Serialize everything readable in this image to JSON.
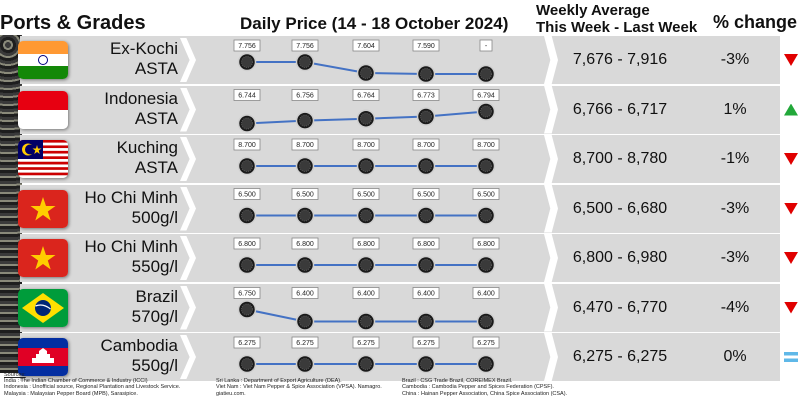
{
  "headers": {
    "ports": "Ports & Grades",
    "daily": "Daily Price (14 - 18 October 2024)",
    "weekly_line1": "Weekly Average",
    "weekly_line2": "This Week - Last Week",
    "pct": "% change"
  },
  "rows": [
    {
      "flag": "india",
      "line1": "Ex-Kochi",
      "line2": "ASTA",
      "avg": "7,676 - 7,916",
      "pct": "-3%",
      "trend": "down"
    },
    {
      "flag": "indonesia",
      "line1": "Indonesia",
      "line2": "ASTA",
      "avg": "6,766 - 6,717",
      "pct": "1%",
      "trend": "up"
    },
    {
      "flag": "malaysia",
      "line1": "Kuching",
      "line2": "ASTA",
      "avg": "8,700 - 8,780",
      "pct": "-1%",
      "trend": "down"
    },
    {
      "flag": "vietnam",
      "line1": "Ho Chi Minh",
      "line2": "500g/l",
      "avg": "6,500 - 6,680",
      "pct": "-3%",
      "trend": "down"
    },
    {
      "flag": "vietnam",
      "line1": "Ho Chi Minh",
      "line2": "550g/l",
      "avg": "6,800 - 6,980",
      "pct": "-3%",
      "trend": "down"
    },
    {
      "flag": "brazil",
      "line1": "Brazil",
      "line2": "570g/l",
      "avg": "6,470 - 6,770",
      "pct": "-4%",
      "trend": "down"
    },
    {
      "flag": "cambodia",
      "line1": "Cambodia",
      "line2": "550g/l",
      "avg": "6,275 - 6,275",
      "pct": "0%",
      "trend": "flat"
    }
  ],
  "chart_data": {
    "type": "line",
    "title": "Daily Price (14 - 18 October 2024)",
    "series": [
      {
        "name": "Ex-Kochi ASTA",
        "values": [
          7756,
          7756,
          7604,
          7590,
          null
        ],
        "labels": [
          "7.756",
          "7.756",
          "7.604",
          "7.590",
          "-"
        ]
      },
      {
        "name": "Indonesia ASTA",
        "values": [
          6744,
          6756,
          6764,
          6773,
          6794
        ],
        "labels": [
          "6.744",
          "6.756",
          "6.764",
          "6.773",
          "6.794"
        ]
      },
      {
        "name": "Kuching ASTA",
        "values": [
          8700,
          8700,
          8700,
          8700,
          8700
        ],
        "labels": [
          "8.700",
          "8.700",
          "8.700",
          "8.700",
          "8.700"
        ]
      },
      {
        "name": "Ho Chi Minh 500g/l",
        "values": [
          6500,
          6500,
          6500,
          6500,
          6500
        ],
        "labels": [
          "6.500",
          "6.500",
          "6.500",
          "6.500",
          "6.500"
        ]
      },
      {
        "name": "Ho Chi Minh 550g/l",
        "values": [
          6800,
          6800,
          6800,
          6800,
          6800
        ],
        "labels": [
          "6.800",
          "6.800",
          "6.800",
          "6.800",
          "6.800"
        ]
      },
      {
        "name": "Brazil 570g/l",
        "values": [
          6750,
          6400,
          6400,
          6400,
          6400
        ],
        "labels": [
          "6.750",
          "6.400",
          "6.400",
          "6.400",
          "6.400"
        ]
      },
      {
        "name": "Cambodia 550g/l",
        "values": [
          6275,
          6275,
          6275,
          6275,
          6275
        ],
        "labels": [
          "6.275",
          "6.275",
          "6.275",
          "6.275",
          "6.275"
        ]
      }
    ],
    "line_color": "#4472c4"
  },
  "sources": {
    "title": "Sources:",
    "col1": [
      "India : The Indian Chamber of Commerce & Industry (ICCI)",
      "Indonesia : Unofficial source, Regional Plantation and Livestock Service.",
      "Malaysia : Malaysian Pepper Board (MPB), Sarasipice."
    ],
    "col2": [
      "Sri Lanka : Department of Export Agriculture (DEA).",
      "Viet Nam : Viet Nam Pepper & Spice Association (VPSA). Namagro.",
      "giatieu.com."
    ],
    "col3": [
      "Brazil : CSG Trade Brazil, COREIMEX Brazil.",
      "Cambodia : Cambodia Pepper and Spices Federation (CPSF).",
      "China : Hainan Pepper Association, China Spice Association (CSA)."
    ]
  }
}
